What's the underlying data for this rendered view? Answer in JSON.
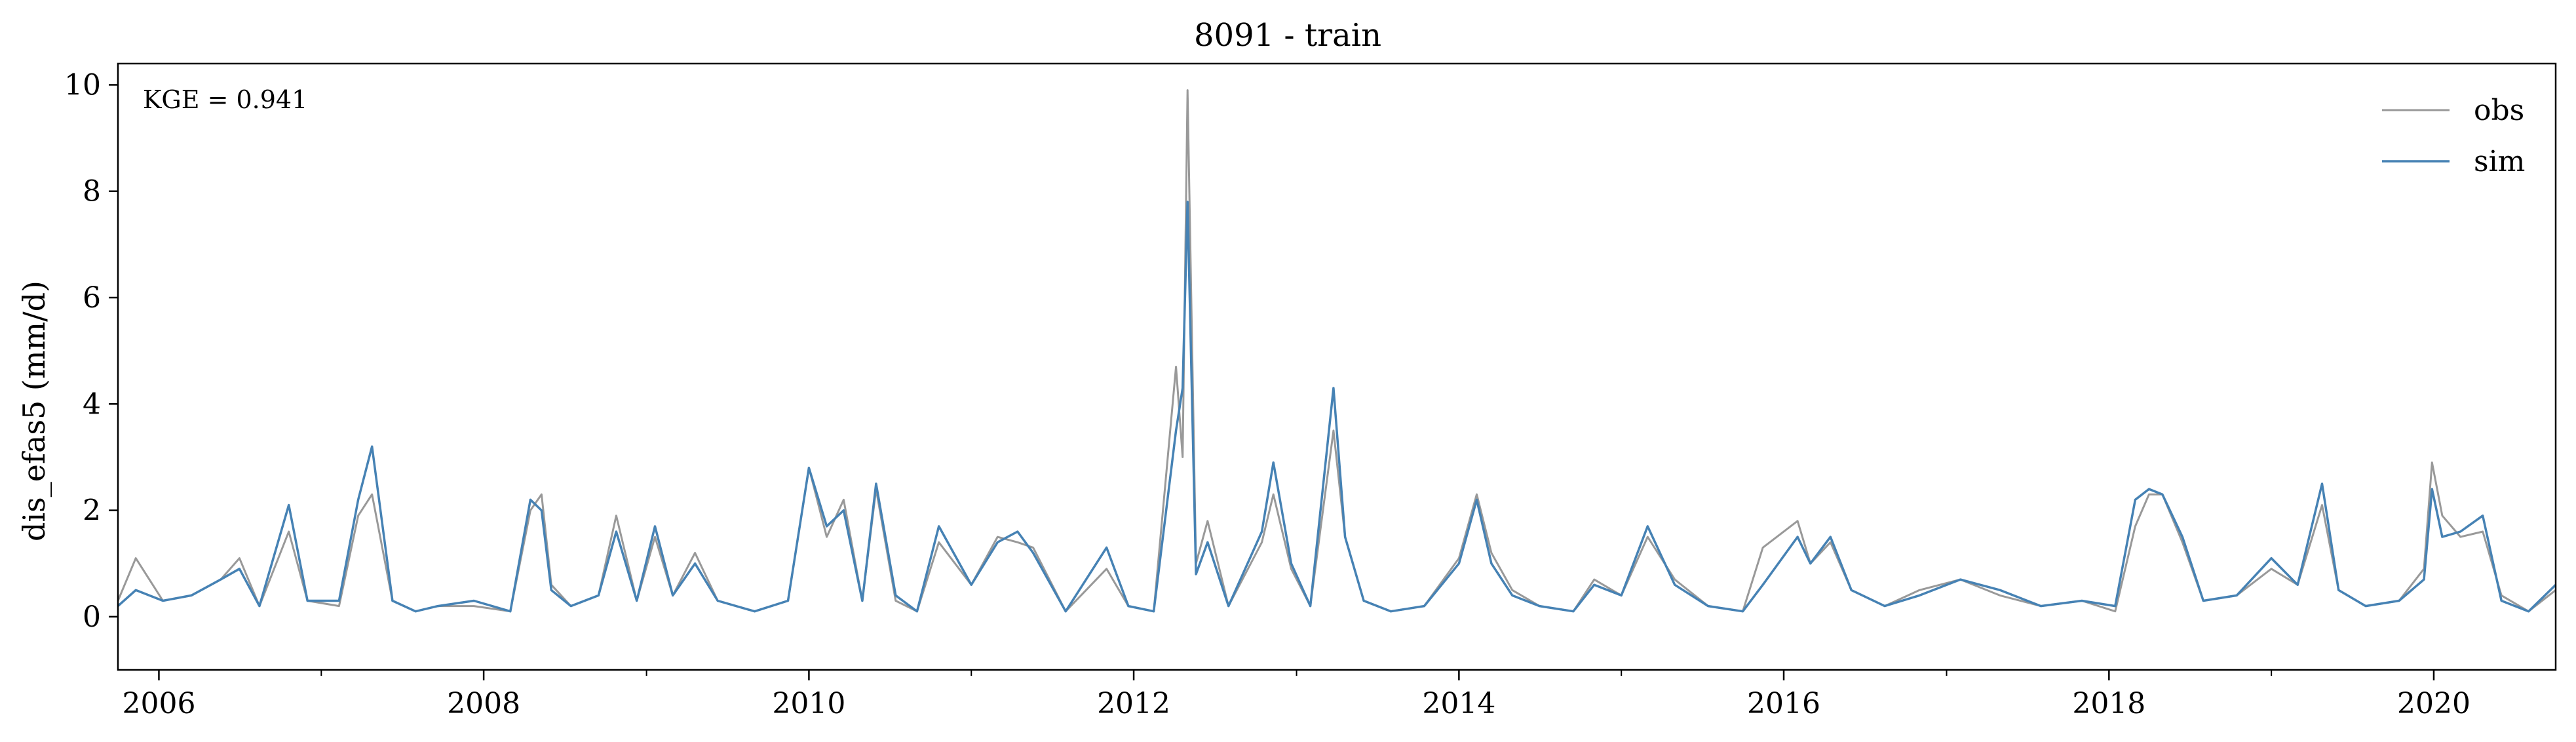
{
  "chart_data": {
    "type": "line",
    "title": "8091 - train",
    "xlabel": "",
    "ylabel": "dis_efas5 (mm/d)",
    "annotation": "KGE = 0.941",
    "xlim": [
      "2005-10-01",
      "2020-10-01"
    ],
    "ylim": [
      -1,
      10.4
    ],
    "x_tick_labels": [
      "2006",
      "2008",
      "2010",
      "2012",
      "2014",
      "2016",
      "2018",
      "2020"
    ],
    "y_tick_labels": [
      "0",
      "2",
      "4",
      "6",
      "8",
      "10"
    ],
    "grid": false,
    "legend": "top-right",
    "series": [
      {
        "name": "obs",
        "color": "#999999",
        "x": [
          "2005-10-01",
          "2005-11-10",
          "2006-01-10",
          "2006-03-15",
          "2006-05-20",
          "2006-07-01",
          "2006-08-15",
          "2006-10-20",
          "2006-12-01",
          "2007-02-10",
          "2007-03-25",
          "2007-04-25",
          "2007-06-10",
          "2007-08-01",
          "2007-09-20",
          "2007-12-10",
          "2008-03-01",
          "2008-04-15",
          "2008-05-10",
          "2008-06-01",
          "2008-07-15",
          "2008-09-15",
          "2008-10-25",
          "2008-12-10",
          "2009-01-20",
          "2009-03-01",
          "2009-04-20",
          "2009-06-10",
          "2009-09-01",
          "2009-11-15",
          "2010-01-01",
          "2010-02-10",
          "2010-03-20",
          "2010-05-01",
          "2010-06-01",
          "2010-07-15",
          "2010-09-01",
          "2010-10-20",
          "2011-01-01",
          "2011-03-01",
          "2011-04-15",
          "2011-05-20",
          "2011-08-01",
          "2011-11-01",
          "2011-12-20",
          "2012-02-15",
          "2012-04-05",
          "2012-04-20",
          "2012-05-01",
          "2012-05-20",
          "2012-06-15",
          "2012-08-01",
          "2012-10-15",
          "2012-11-10",
          "2012-12-20",
          "2013-02-01",
          "2013-03-25",
          "2013-04-20",
          "2013-06-01",
          "2013-08-01",
          "2013-10-15",
          "2014-01-01",
          "2014-02-10",
          "2014-03-15",
          "2014-05-01",
          "2014-07-01",
          "2014-09-15",
          "2014-11-01",
          "2015-01-01",
          "2015-03-01",
          "2015-05-01",
          "2015-07-15",
          "2015-10-01",
          "2015-11-15",
          "2016-02-01",
          "2016-03-01",
          "2016-04-15",
          "2016-06-01",
          "2016-08-15",
          "2016-11-01",
          "2017-02-01",
          "2017-05-01",
          "2017-08-01",
          "2017-11-01",
          "2018-01-15",
          "2018-03-01",
          "2018-04-01",
          "2018-05-01",
          "2018-06-15",
          "2018-08-01",
          "2018-10-15",
          "2019-01-01",
          "2019-03-01",
          "2019-04-25",
          "2019-06-01",
          "2019-08-01",
          "2019-10-15",
          "2019-12-10",
          "2019-12-28",
          "2020-01-20",
          "2020-03-01",
          "2020-04-20",
          "2020-06-01",
          "2020-08-01",
          "2020-10-01"
        ],
        "y": [
          0.3,
          1.1,
          0.3,
          0.4,
          0.7,
          1.1,
          0.2,
          1.6,
          0.3,
          0.2,
          1.9,
          2.3,
          0.3,
          0.1,
          0.2,
          0.2,
          0.1,
          2.0,
          2.3,
          0.6,
          0.2,
          0.4,
          1.9,
          0.3,
          1.5,
          0.4,
          1.2,
          0.3,
          0.1,
          0.3,
          2.8,
          1.5,
          2.2,
          0.3,
          2.4,
          0.3,
          0.1,
          1.4,
          0.6,
          1.5,
          1.4,
          1.3,
          0.1,
          0.9,
          0.2,
          0.1,
          4.7,
          3.0,
          9.9,
          1.0,
          1.8,
          0.2,
          1.4,
          2.3,
          0.9,
          0.2,
          3.5,
          1.5,
          0.3,
          0.1,
          0.2,
          1.1,
          2.3,
          1.2,
          0.5,
          0.2,
          0.1,
          0.7,
          0.4,
          1.5,
          0.7,
          0.2,
          0.1,
          1.3,
          1.8,
          1.0,
          1.4,
          0.5,
          0.2,
          0.5,
          0.7,
          0.4,
          0.2,
          0.3,
          0.1,
          1.7,
          2.3,
          2.3,
          1.4,
          0.3,
          0.4,
          0.9,
          0.6,
          2.1,
          0.5,
          0.2,
          0.3,
          0.9,
          2.9,
          1.9,
          1.5,
          1.6,
          0.4,
          0.1,
          0.5
        ]
      },
      {
        "name": "sim",
        "color": "#4682b4",
        "x": [
          "2005-10-01",
          "2005-11-10",
          "2006-01-10",
          "2006-03-15",
          "2006-05-20",
          "2006-07-01",
          "2006-08-15",
          "2006-10-20",
          "2006-12-01",
          "2007-02-10",
          "2007-03-25",
          "2007-04-25",
          "2007-06-10",
          "2007-08-01",
          "2007-09-20",
          "2007-12-10",
          "2008-03-01",
          "2008-04-15",
          "2008-05-10",
          "2008-06-01",
          "2008-07-15",
          "2008-09-15",
          "2008-10-25",
          "2008-12-10",
          "2009-01-20",
          "2009-03-01",
          "2009-04-20",
          "2009-06-10",
          "2009-09-01",
          "2009-11-15",
          "2010-01-01",
          "2010-02-10",
          "2010-03-20",
          "2010-05-01",
          "2010-06-01",
          "2010-07-15",
          "2010-09-01",
          "2010-10-20",
          "2011-01-01",
          "2011-03-01",
          "2011-04-15",
          "2011-05-20",
          "2011-08-01",
          "2011-11-01",
          "2011-12-20",
          "2012-02-15",
          "2012-04-05",
          "2012-04-20",
          "2012-05-01",
          "2012-05-20",
          "2012-06-15",
          "2012-08-01",
          "2012-10-15",
          "2012-11-10",
          "2012-12-20",
          "2013-02-01",
          "2013-03-25",
          "2013-04-20",
          "2013-06-01",
          "2013-08-01",
          "2013-10-15",
          "2014-01-01",
          "2014-02-10",
          "2014-03-15",
          "2014-05-01",
          "2014-07-01",
          "2014-09-15",
          "2014-11-01",
          "2015-01-01",
          "2015-03-01",
          "2015-05-01",
          "2015-07-15",
          "2015-10-01",
          "2015-11-15",
          "2016-02-01",
          "2016-03-01",
          "2016-04-15",
          "2016-06-01",
          "2016-08-15",
          "2016-11-01",
          "2017-02-01",
          "2017-05-01",
          "2017-08-01",
          "2017-11-01",
          "2018-01-15",
          "2018-03-01",
          "2018-04-01",
          "2018-05-01",
          "2018-06-15",
          "2018-08-01",
          "2018-10-15",
          "2019-01-01",
          "2019-03-01",
          "2019-04-25",
          "2019-06-01",
          "2019-08-01",
          "2019-10-15",
          "2019-12-10",
          "2019-12-28",
          "2020-01-20",
          "2020-03-01",
          "2020-04-20",
          "2020-06-01",
          "2020-08-01",
          "2020-10-01"
        ],
        "y": [
          0.2,
          0.5,
          0.3,
          0.4,
          0.7,
          0.9,
          0.2,
          2.1,
          0.3,
          0.3,
          2.2,
          3.2,
          0.3,
          0.1,
          0.2,
          0.3,
          0.1,
          2.2,
          2.0,
          0.5,
          0.2,
          0.4,
          1.6,
          0.3,
          1.7,
          0.4,
          1.0,
          0.3,
          0.1,
          0.3,
          2.8,
          1.7,
          2.0,
          0.3,
          2.5,
          0.4,
          0.1,
          1.7,
          0.6,
          1.4,
          1.6,
          1.2,
          0.1,
          1.3,
          0.2,
          0.1,
          3.5,
          4.3,
          7.8,
          0.8,
          1.4,
          0.2,
          1.6,
          2.9,
          1.0,
          0.2,
          4.3,
          1.5,
          0.3,
          0.1,
          0.2,
          1.0,
          2.2,
          1.0,
          0.4,
          0.2,
          0.1,
          0.6,
          0.4,
          1.7,
          0.6,
          0.2,
          0.1,
          0.6,
          1.5,
          1.0,
          1.5,
          0.5,
          0.2,
          0.4,
          0.7,
          0.5,
          0.2,
          0.3,
          0.2,
          2.2,
          2.4,
          2.3,
          1.5,
          0.3,
          0.4,
          1.1,
          0.6,
          2.5,
          0.5,
          0.2,
          0.3,
          0.7,
          2.4,
          1.5,
          1.6,
          1.9,
          0.3,
          0.1,
          0.6
        ]
      }
    ]
  }
}
